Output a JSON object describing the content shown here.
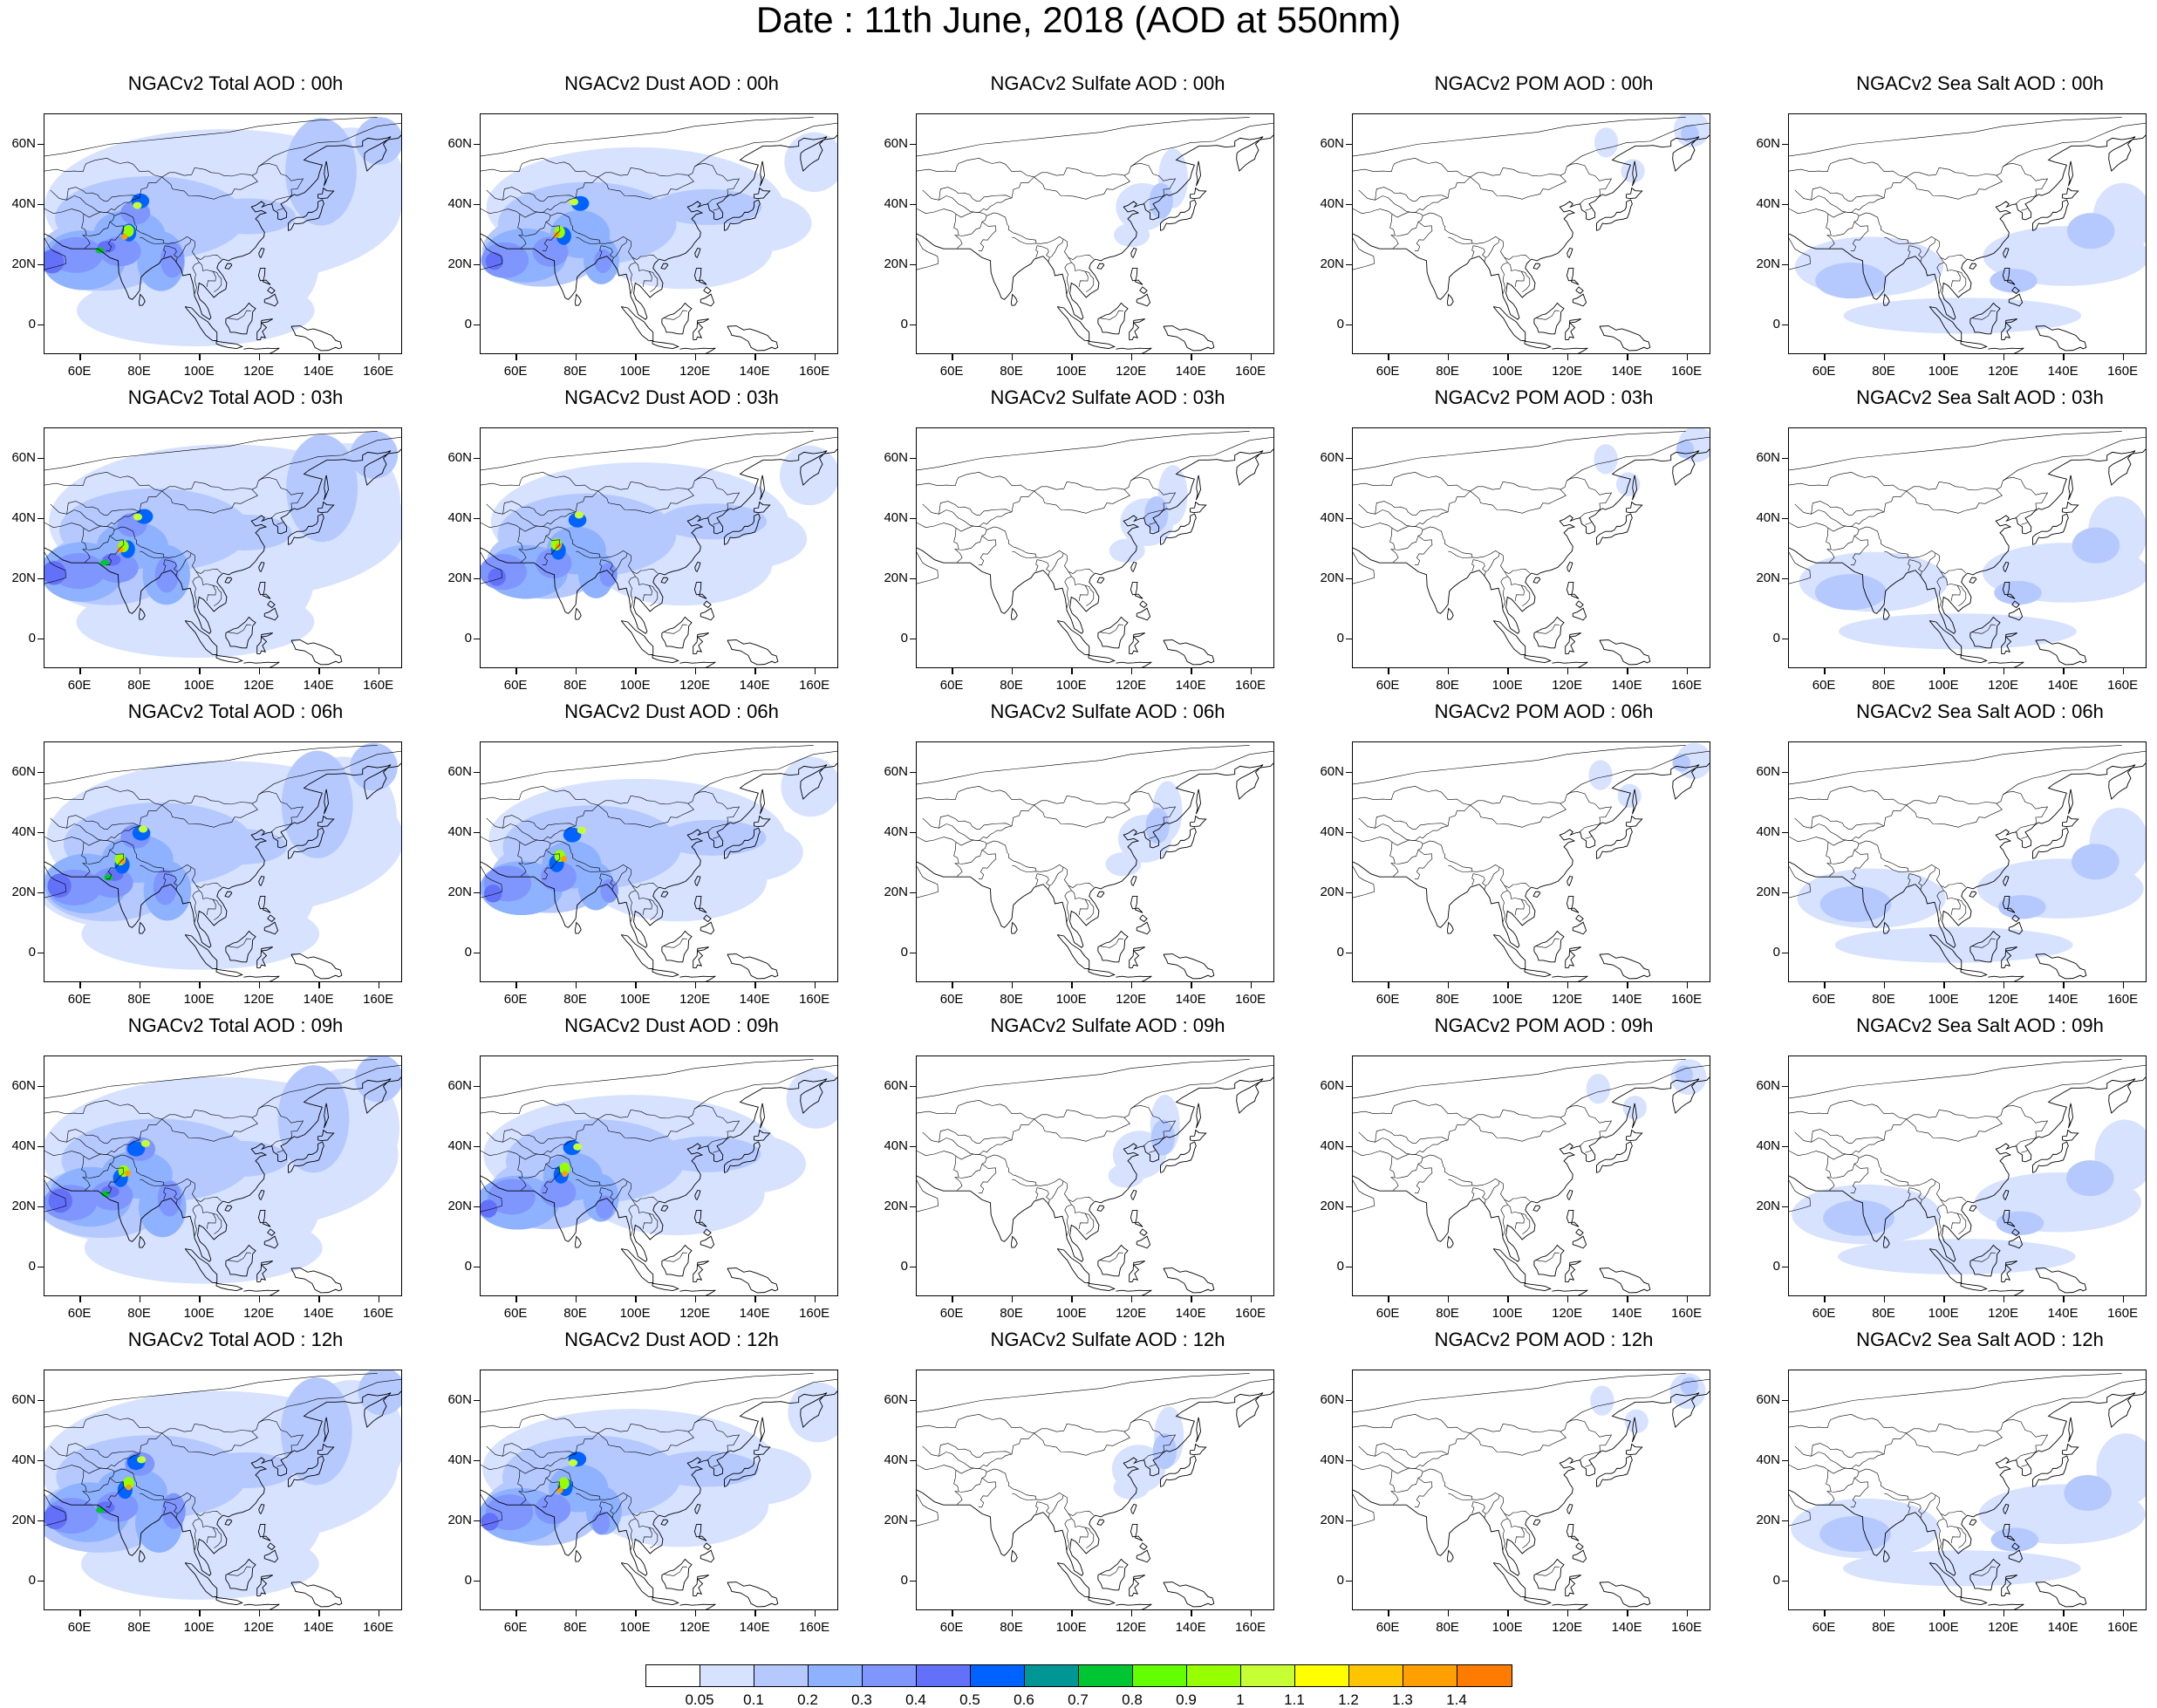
{
  "title": "Date : 11th June, 2018 (AOD at 550nm)",
  "axes": {
    "y_ticks": [
      "60N",
      "40N",
      "20N",
      "0"
    ],
    "x_ticks": [
      "60E",
      "80E",
      "100E",
      "120E",
      "140E",
      "160E"
    ]
  },
  "panels": [
    [
      "NGACv2 Total AOD : 00h",
      "NGACv2 Dust AOD : 00h",
      "NGACv2 Sulfate AOD : 00h",
      "NGACv2 POM AOD : 00h",
      "NGACv2 Sea Salt AOD : 00h"
    ],
    [
      "NGACv2 Total AOD : 03h",
      "NGACv2 Dust AOD : 03h",
      "NGACv2 Sulfate AOD : 03h",
      "NGACv2 POM AOD : 03h",
      "NGACv2 Sea Salt AOD : 03h"
    ],
    [
      "NGACv2 Total AOD : 06h",
      "NGACv2 Dust AOD : 06h",
      "NGACv2 Sulfate AOD : 06h",
      "NGACv2 POM AOD : 06h",
      "NGACv2 Sea Salt AOD : 06h"
    ],
    [
      "NGACv2 Total AOD : 09h",
      "NGACv2 Dust AOD : 09h",
      "NGACv2 Sulfate AOD : 09h",
      "NGACv2 POM AOD : 09h",
      "NGACv2 Sea Salt  AOD : 09h"
    ],
    [
      "NGACv2 Total AOD  : 12h",
      "NGACv2 Dust AOD : 12h",
      "NGACv2 Sulfate AOD : 12h",
      "NGACv2 POM  AOD : 12h",
      "NGACv2 Sea Salt  AOD : 12h"
    ]
  ],
  "colorbar": {
    "labels": [
      "0.05",
      "0.1",
      "0.2",
      "0.3",
      "0.4",
      "0.5",
      "0.6",
      "0.7",
      "0.8",
      "0.9",
      "1",
      "1.1",
      "1.2",
      "1.3",
      "1.4"
    ],
    "colors": [
      "#ffffff",
      "#d6e2ff",
      "#b5c9ff",
      "#8eb2ff",
      "#7f96ff",
      "#6370f8",
      "#0063ff",
      "#009696",
      "#00c633",
      "#63ff00",
      "#96ff00",
      "#c6ff33",
      "#ffff00",
      "#ffc600",
      "#ffa000",
      "#ff7c00",
      "#ff1900"
    ]
  }
}
